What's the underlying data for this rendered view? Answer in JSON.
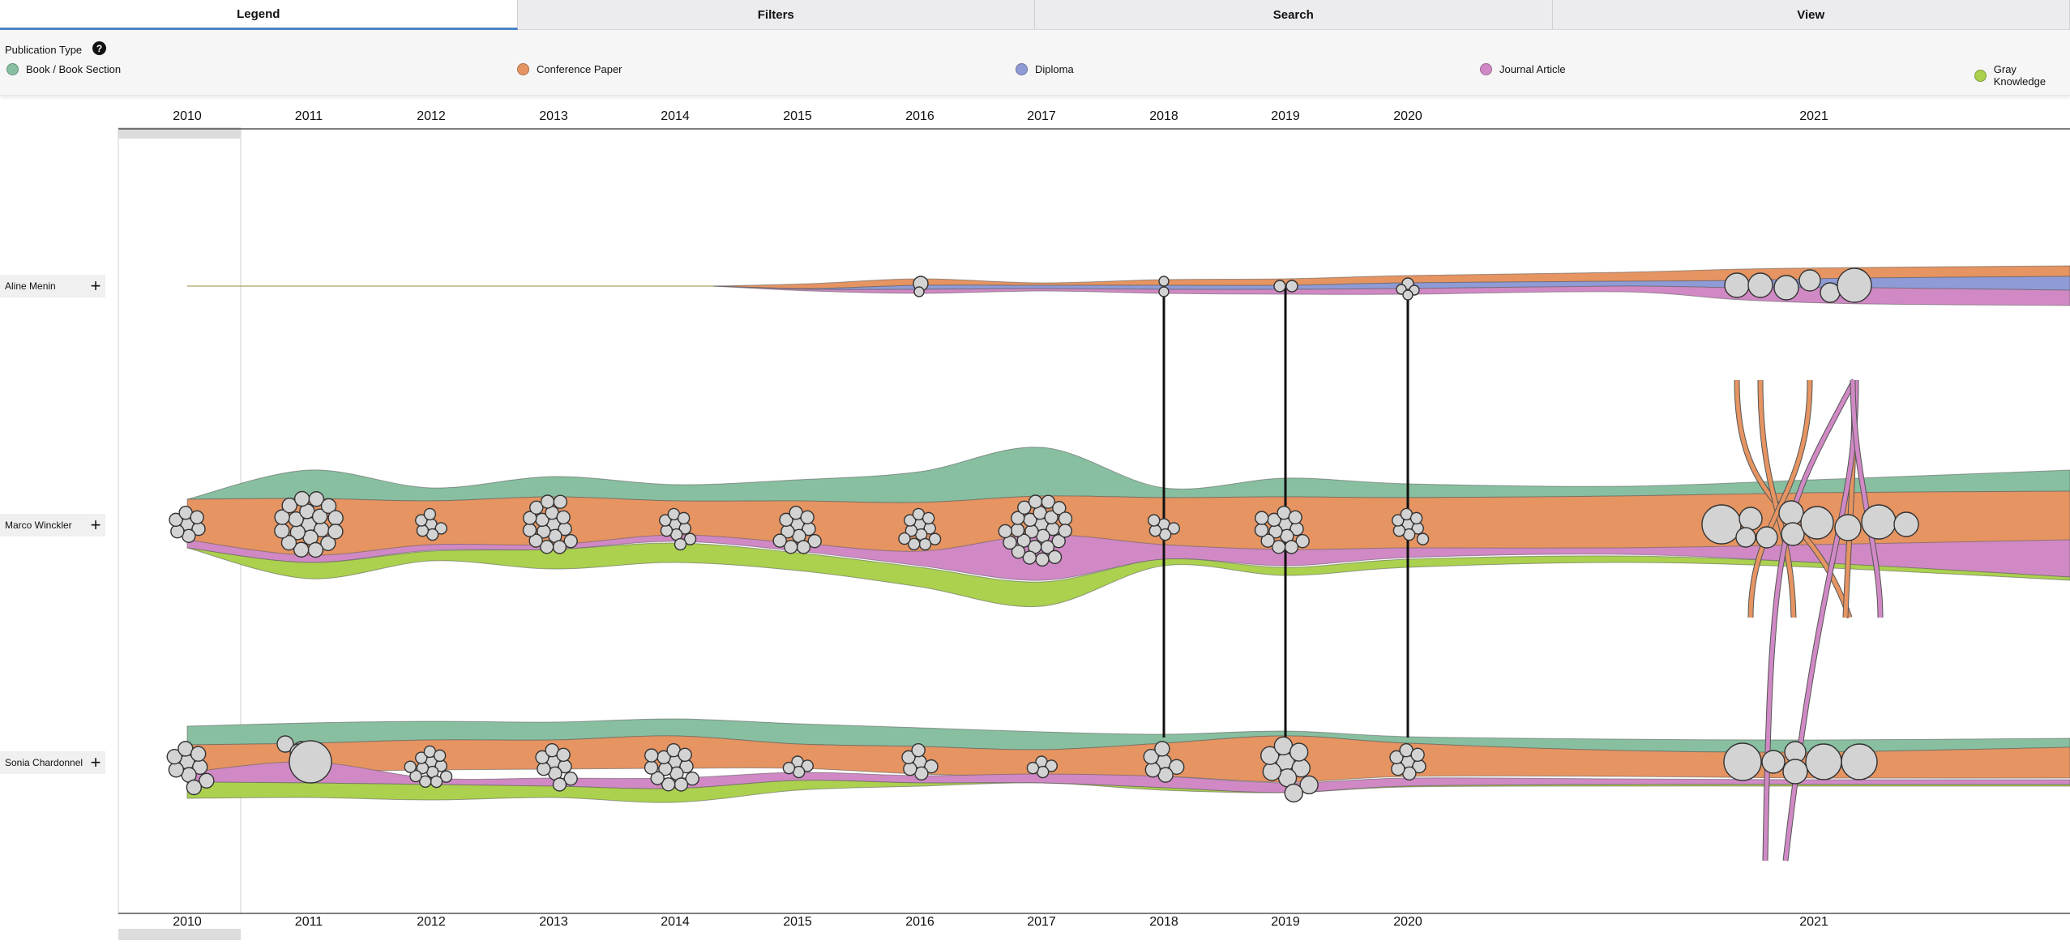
{
  "tabs": [
    {
      "label": "Legend",
      "active": true
    },
    {
      "label": "Filters",
      "active": false
    },
    {
      "label": "Search",
      "active": false
    },
    {
      "label": "View",
      "active": false
    }
  ],
  "legend": {
    "title": "Publication Type",
    "help_icon": "question-circle-icon",
    "items": [
      {
        "label": "Book / Book Section",
        "color": "#88bfa0"
      },
      {
        "label": "Conference Paper",
        "color": "#e59462"
      },
      {
        "label": "Diploma",
        "color": "#8f9bd6"
      },
      {
        "label": "Journal Article",
        "color": "#d089c4"
      },
      {
        "label": "Gray Knowledge",
        "color": "#abd14f"
      }
    ]
  },
  "years": [
    "2010",
    "2011",
    "2012",
    "2013",
    "2014",
    "2015",
    "2016",
    "2017",
    "2018",
    "2019",
    "2020",
    "2021"
  ],
  "authors": [
    {
      "name": "Aline Menin",
      "expand_icon": "plus-icon"
    },
    {
      "name": "Marco Winckler",
      "expand_icon": "plus-icon"
    },
    {
      "name": "Sonia Chardonnel",
      "expand_icon": "plus-icon"
    }
  ],
  "colors": {
    "book": "#88bfa0",
    "conference": "#e59462",
    "diploma": "#8f9bd6",
    "journal": "#d089c4",
    "gray": "#abd14f",
    "node_fill": "#d3d3d3",
    "tab_active_underline": "#4a84c4"
  }
}
